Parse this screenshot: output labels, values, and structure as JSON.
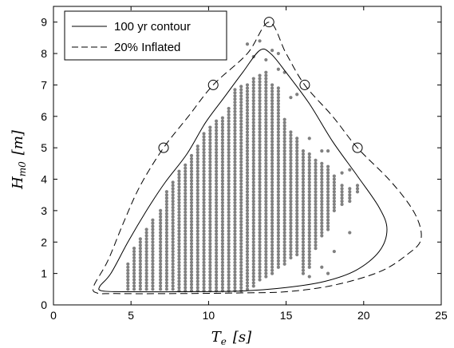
{
  "chart_data": {
    "type": "scatter",
    "xlabel": "T_e  [s]",
    "ylabel": "H_m0  [m]",
    "xlim": [
      0,
      25
    ],
    "ylim": [
      0,
      9.5
    ],
    "xticks": [
      0,
      5,
      10,
      15,
      20,
      25
    ],
    "yticks": [
      0,
      1,
      2,
      3,
      4,
      5,
      6,
      7,
      8,
      9
    ],
    "x_tick_labels": [
      "0",
      "5",
      "10",
      "15",
      "20",
      "25"
    ],
    "y_tick_labels": [
      "0",
      "1",
      "2",
      "3",
      "4",
      "5",
      "6",
      "7",
      "8",
      "9"
    ],
    "grid": false,
    "legend": {
      "position": "top-left",
      "entries": [
        {
          "label": "100 yr contour",
          "style": "solid"
        },
        {
          "label": "20% Inflated",
          "style": "dashed"
        }
      ]
    },
    "colors": {
      "scatter": "#808080",
      "lines": "#000000"
    },
    "scatter_columns": [
      {
        "x": 4.8,
        "ymin": 0.5,
        "ymax": 1.3
      },
      {
        "x": 5.2,
        "ymin": 0.5,
        "ymax": 1.8
      },
      {
        "x": 5.6,
        "ymin": 0.5,
        "ymax": 2.1
      },
      {
        "x": 6.0,
        "ymin": 0.5,
        "ymax": 2.4
      },
      {
        "x": 6.4,
        "ymin": 0.5,
        "ymax": 2.7
      },
      {
        "x": 6.9,
        "ymin": 0.5,
        "ymax": 3.0
      },
      {
        "x": 7.3,
        "ymin": 0.5,
        "ymax": 3.6
      },
      {
        "x": 7.7,
        "ymin": 0.5,
        "ymax": 3.9
      },
      {
        "x": 8.1,
        "ymin": 0.45,
        "ymax": 4.3
      },
      {
        "x": 8.5,
        "ymin": 0.45,
        "ymax": 4.5
      },
      {
        "x": 8.9,
        "ymin": 0.45,
        "ymax": 4.8
      },
      {
        "x": 9.3,
        "ymin": 0.45,
        "ymax": 5.1
      },
      {
        "x": 9.7,
        "ymin": 0.45,
        "ymax": 5.5
      },
      {
        "x": 10.1,
        "ymin": 0.45,
        "ymax": 5.7
      },
      {
        "x": 10.5,
        "ymin": 0.45,
        "ymax": 5.9
      },
      {
        "x": 10.9,
        "ymin": 0.45,
        "ymax": 6.0
      },
      {
        "x": 11.3,
        "ymin": 0.45,
        "ymax": 6.3
      },
      {
        "x": 11.7,
        "ymin": 0.45,
        "ymax": 6.9
      },
      {
        "x": 12.1,
        "ymin": 0.45,
        "ymax": 7.0
      },
      {
        "x": 12.5,
        "ymin": 0.5,
        "ymax": 7.0
      },
      {
        "x": 12.9,
        "ymin": 0.6,
        "ymax": 7.2
      },
      {
        "x": 13.3,
        "ymin": 0.8,
        "ymax": 7.3
      },
      {
        "x": 13.7,
        "ymin": 0.9,
        "ymax": 7.4
      },
      {
        "x": 14.1,
        "ymin": 1.0,
        "ymax": 7.0
      },
      {
        "x": 14.5,
        "ymin": 1.2,
        "ymax": 6.9
      },
      {
        "x": 14.9,
        "ymin": 1.3,
        "ymax": 5.9
      },
      {
        "x": 15.3,
        "ymin": 1.5,
        "ymax": 5.5
      },
      {
        "x": 15.7,
        "ymin": 1.6,
        "ymax": 5.3
      },
      {
        "x": 16.1,
        "ymin": 1.0,
        "ymax": 4.9
      },
      {
        "x": 16.5,
        "ymin": 1.2,
        "ymax": 4.8
      },
      {
        "x": 16.9,
        "ymin": 1.8,
        "ymax": 4.6
      },
      {
        "x": 17.3,
        "ymin": 2.2,
        "ymax": 4.5
      },
      {
        "x": 17.7,
        "ymin": 2.4,
        "ymax": 4.4
      },
      {
        "x": 18.1,
        "ymin": 3.0,
        "ymax": 4.1
      },
      {
        "x": 18.6,
        "ymin": 3.2,
        "ymax": 3.8
      },
      {
        "x": 19.1,
        "ymin": 3.3,
        "ymax": 3.7
      },
      {
        "x": 19.6,
        "ymin": 3.6,
        "ymax": 3.8
      }
    ],
    "scatter_outliers": [
      {
        "x": 12.5,
        "y": 8.3
      },
      {
        "x": 12.9,
        "y": 7.9
      },
      {
        "x": 13.3,
        "y": 8.4
      },
      {
        "x": 13.7,
        "y": 7.8
      },
      {
        "x": 14.1,
        "y": 8.1
      },
      {
        "x": 14.5,
        "y": 8.0
      },
      {
        "x": 14.5,
        "y": 7.5
      },
      {
        "x": 14.9,
        "y": 7.4
      },
      {
        "x": 15.3,
        "y": 6.6
      },
      {
        "x": 15.7,
        "y": 6.7
      },
      {
        "x": 16.5,
        "y": 5.3
      },
      {
        "x": 17.3,
        "y": 4.9
      },
      {
        "x": 17.7,
        "y": 4.9
      },
      {
        "x": 18.1,
        "y": 1.7
      },
      {
        "x": 19.1,
        "y": 4.3
      },
      {
        "x": 18.6,
        "y": 4.2
      },
      {
        "x": 16.5,
        "y": 0.9
      },
      {
        "x": 17.3,
        "y": 1.2
      },
      {
        "x": 17.7,
        "y": 1.0
      },
      {
        "x": 19.1,
        "y": 2.3
      }
    ],
    "contour_100yr": [
      [
        13.3,
        8.1
      ],
      [
        12.2,
        7.4
      ],
      [
        11.0,
        6.6
      ],
      [
        9.8,
        5.8
      ],
      [
        8.6,
        4.8
      ],
      [
        7.2,
        3.9
      ],
      [
        6.0,
        3.0
      ],
      [
        4.8,
        2.0
      ],
      [
        3.7,
        1.0
      ],
      [
        3.0,
        0.6
      ],
      [
        3.1,
        0.45
      ],
      [
        4.5,
        0.42
      ],
      [
        8.0,
        0.42
      ],
      [
        12.0,
        0.44
      ],
      [
        15.0,
        0.55
      ],
      [
        17.5,
        0.75
      ],
      [
        19.5,
        1.1
      ],
      [
        21.0,
        1.7
      ],
      [
        21.5,
        2.4
      ],
      [
        21.0,
        3.1
      ],
      [
        19.6,
        4.1
      ],
      [
        18.0,
        5.2
      ],
      [
        16.5,
        6.4
      ],
      [
        15.0,
        7.4
      ],
      [
        14.0,
        8.0
      ],
      [
        13.3,
        8.1
      ]
    ],
    "contour_inflated": [
      [
        13.9,
        9.0
      ],
      [
        12.5,
        8.0
      ],
      [
        10.3,
        7.0
      ],
      [
        8.7,
        6.0
      ],
      [
        7.1,
        5.0
      ],
      [
        5.6,
        3.8
      ],
      [
        4.5,
        2.6
      ],
      [
        3.5,
        1.4
      ],
      [
        2.6,
        0.6
      ],
      [
        2.8,
        0.38
      ],
      [
        4.0,
        0.36
      ],
      [
        8.0,
        0.36
      ],
      [
        12.0,
        0.38
      ],
      [
        15.0,
        0.42
      ],
      [
        18.0,
        0.62
      ],
      [
        21.0,
        1.05
      ],
      [
        22.8,
        1.6
      ],
      [
        23.7,
        2.1
      ],
      [
        23.3,
        2.9
      ],
      [
        21.8,
        3.9
      ],
      [
        19.6,
        5.0
      ],
      [
        18.0,
        6.0
      ],
      [
        16.2,
        7.0
      ],
      [
        15.0,
        8.0
      ],
      [
        13.9,
        9.0
      ]
    ],
    "marker_circles": [
      {
        "x": 7.1,
        "y": 5.0
      },
      {
        "x": 10.3,
        "y": 7.0
      },
      {
        "x": 13.9,
        "y": 9.0
      },
      {
        "x": 16.2,
        "y": 7.0
      },
      {
        "x": 19.6,
        "y": 5.0
      }
    ]
  }
}
